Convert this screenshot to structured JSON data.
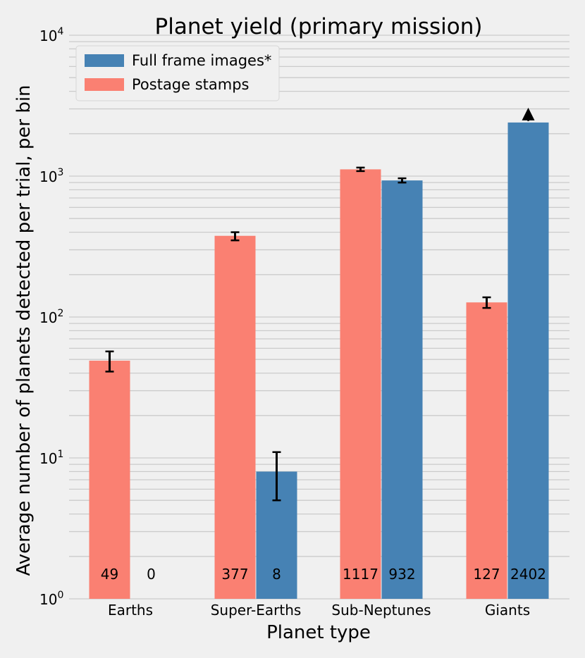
{
  "chart_data": {
    "type": "bar",
    "title": "Planet yield (primary mission)",
    "xlabel": "Planet type",
    "ylabel": "Average number of planets detected per trial, per bin",
    "yscale": "log",
    "ylim": [
      1,
      10000
    ],
    "y_ticks": [
      {
        "base": "10",
        "exp": "0",
        "value": 1
      },
      {
        "base": "10",
        "exp": "1",
        "value": 10
      },
      {
        "base": "10",
        "exp": "2",
        "value": 100
      },
      {
        "base": "10",
        "exp": "3",
        "value": 1000
      },
      {
        "base": "10",
        "exp": "4",
        "value": 10000
      }
    ],
    "grid": true,
    "legend_position": "top-left",
    "categories": [
      "Earths",
      "Super-Earths",
      "Sub-Neptunes",
      "Giants"
    ],
    "series": [
      {
        "name": "Full frame images*",
        "color": "#4682b4",
        "values": [
          0,
          8,
          932,
          2402
        ],
        "labels": [
          "0",
          "8",
          "932",
          "2402"
        ],
        "error_low": [
          null,
          5,
          900,
          null
        ],
        "error_high": [
          null,
          11,
          965,
          null
        ],
        "lower_limit_marker": [
          false,
          false,
          false,
          true
        ]
      },
      {
        "name": "Postage stamps",
        "color": "#fa8072",
        "values": [
          49,
          377,
          1117,
          127
        ],
        "labels": [
          "49",
          "377",
          "1117",
          "127"
        ],
        "error_low": [
          41,
          350,
          1085,
          116
        ],
        "error_high": [
          57,
          400,
          1150,
          138
        ],
        "lower_limit_marker": [
          false,
          false,
          false,
          false
        ]
      }
    ]
  }
}
